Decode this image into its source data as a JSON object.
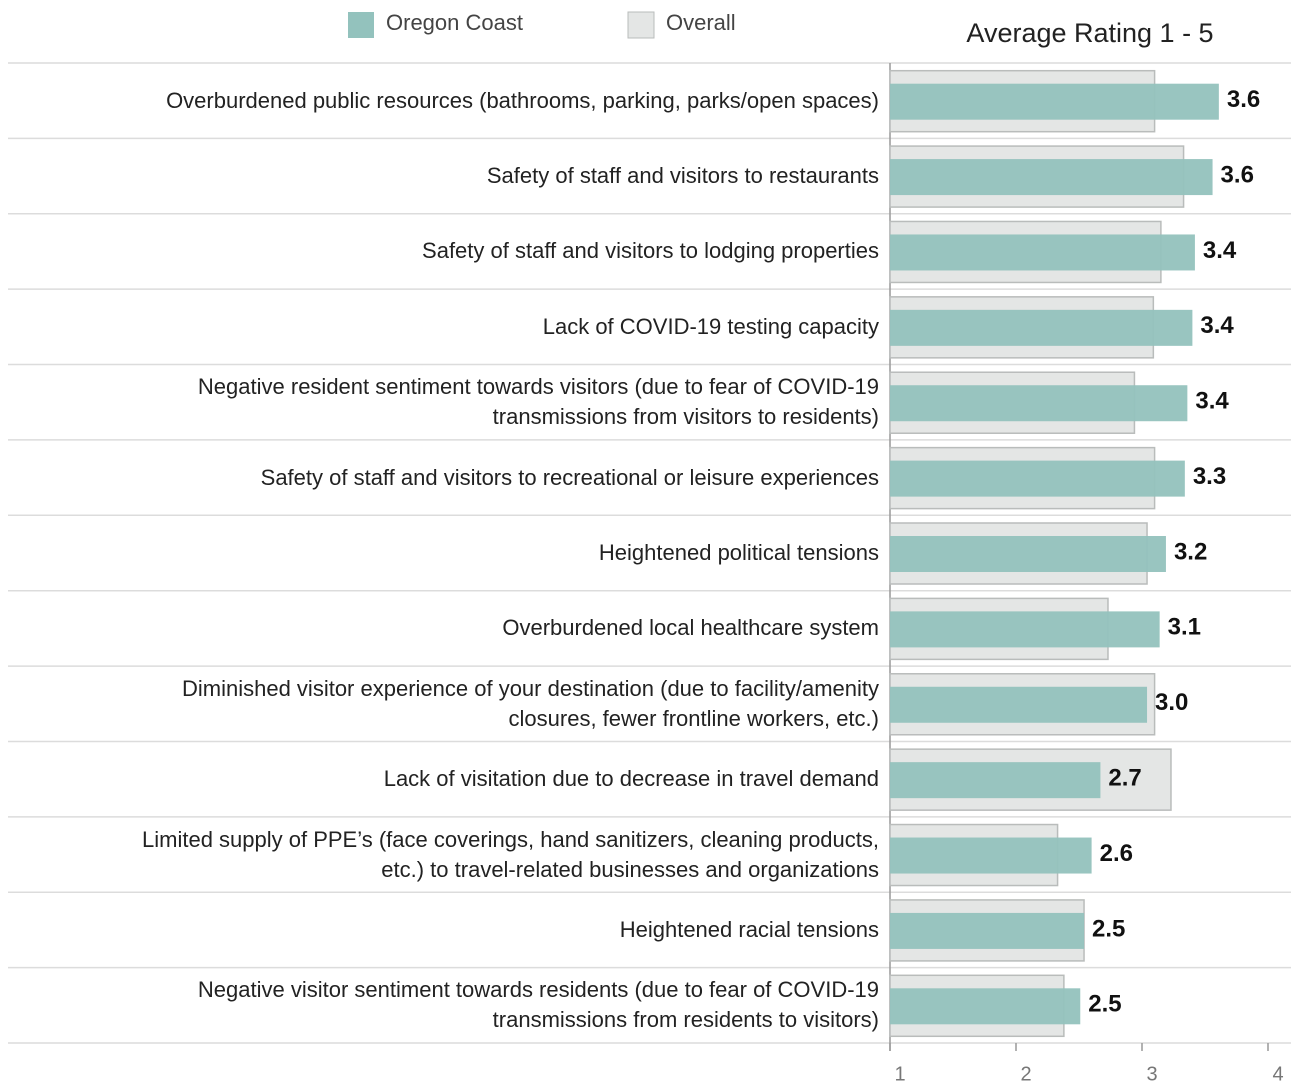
{
  "chart_data": {
    "type": "bar",
    "orientation": "horizontal",
    "overlap": true,
    "title": "Average Rating 1 - 5",
    "categories": [
      "Overburdened public resources (bathrooms, parking, parks/open spaces)",
      "Safety of staff and visitors to restaurants",
      "Safety of staff and visitors to lodging properties",
      "Lack of COVID-19 testing capacity",
      "Negative resident sentiment towards visitors (due to fear of COVID-19\ntransmissions from visitors to residents)",
      "Safety of staff and visitors to recreational or leisure experiences",
      "Heightened political tensions",
      "Overburdened local healthcare system",
      "Diminished visitor experience of your destination (due to facility/amenity\nclosures, fewer frontline workers, etc.)",
      "Lack of visitation due to decrease in travel demand",
      "Limited supply of PPE’s (face coverings, hand sanitizers, cleaning products,\netc.) to travel-related businesses and organizations",
      "Heightened racial tensions",
      "Negative visitor sentiment towards residents (due to fear of COVID-19\ntransmissions from residents to visitors)"
    ],
    "series": [
      {
        "name": "Oregon Coast",
        "color": "#93c2bd",
        "values": [
          3.61,
          3.56,
          3.42,
          3.4,
          3.36,
          3.34,
          3.19,
          3.14,
          3.04,
          2.67,
          2.6,
          2.54,
          2.51
        ],
        "value_labels": [
          "3.6",
          "3.6",
          "3.4",
          "3.4",
          "3.4",
          "3.3",
          "3.2",
          "3.1",
          "3.0",
          "2.7",
          "2.6",
          "2.5",
          "2.5"
        ]
      },
      {
        "name": "Overall",
        "color": "#e4e6e5",
        "values": [
          3.1,
          3.33,
          3.15,
          3.09,
          2.94,
          3.1,
          3.04,
          2.73,
          3.1,
          3.23,
          2.33,
          2.54,
          2.38
        ]
      }
    ],
    "xlim": [
      1,
      4
    ],
    "xticks": [
      1,
      2,
      3,
      4
    ]
  }
}
